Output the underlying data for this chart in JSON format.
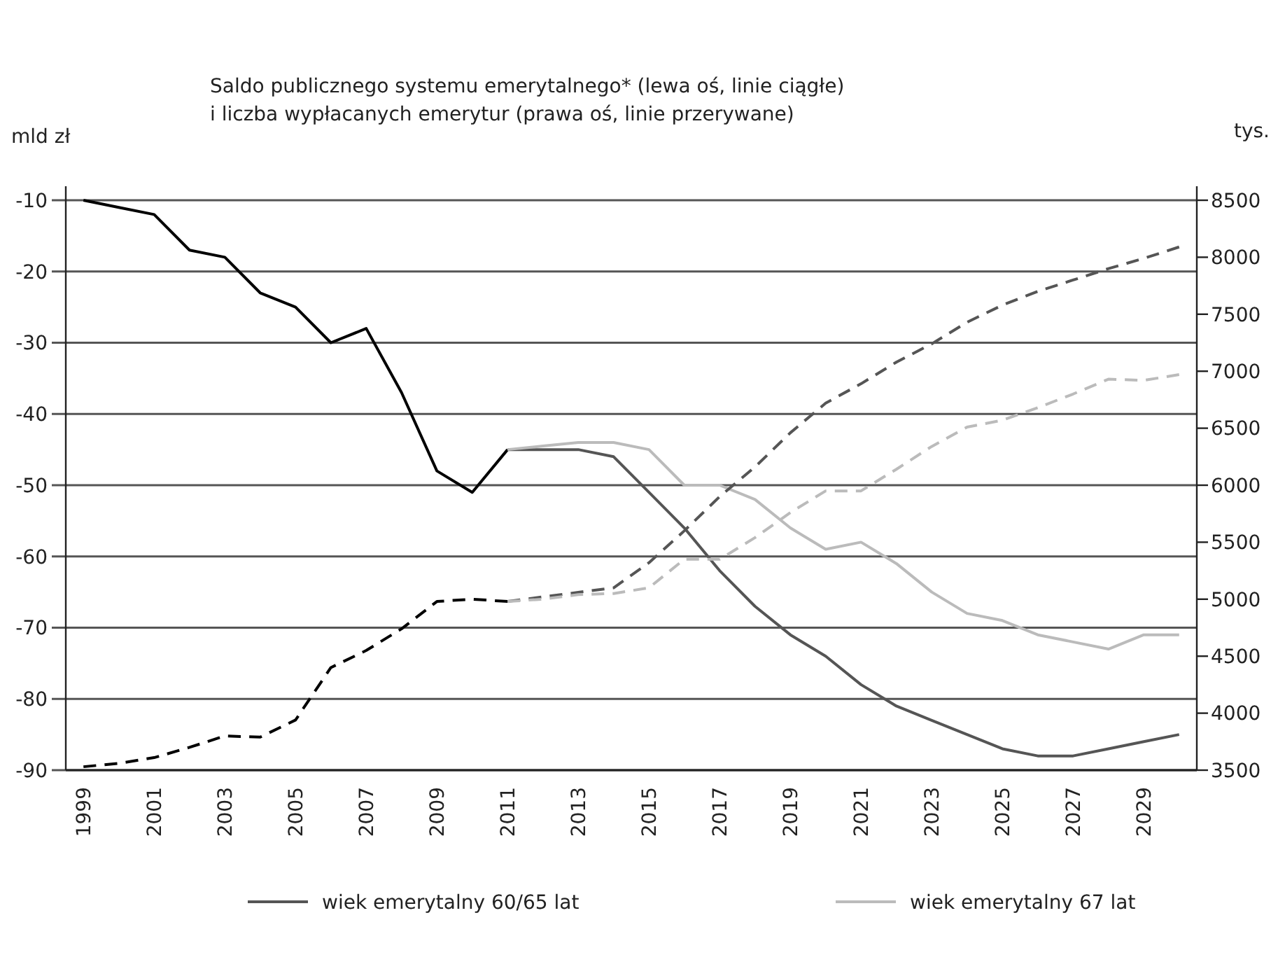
{
  "chart_data": {
    "type": "line",
    "title": "Saldo publicznego systemu emerytalnego* (lewa oś, linie ciągłe)\ni liczba wypłacanych emerytur (prawa oś, linie przerywane)",
    "ylabel": "mld zł",
    "y2label": "tys.",
    "categories": [
      "1999",
      null,
      "2001",
      null,
      "2003",
      null,
      "2005",
      null,
      "2007",
      null,
      "2009",
      null,
      "2011",
      null,
      "2013",
      null,
      "2015",
      null,
      "2017",
      null,
      "2019",
      null,
      "2021",
      null,
      "2023",
      null,
      "2025",
      null,
      "2027",
      null,
      "2029",
      null
    ],
    "ylim": [
      -90,
      -10
    ],
    "yticks": [
      -90,
      -80,
      -70,
      -60,
      -50,
      -40,
      -30,
      -20,
      -10
    ],
    "y2lim": [
      3500,
      8500
    ],
    "y2ticks": [
      3500,
      4000,
      4500,
      5000,
      5500,
      6000,
      6500,
      7000,
      7500,
      8000,
      8500
    ],
    "grid": "y",
    "legend": "bottom",
    "series": [
      {
        "color": "#000000",
        "line_style": "solid",
        "values": [
          -10,
          -11,
          -12,
          -17,
          -18,
          -23,
          -25,
          -30,
          -28,
          -37,
          -48,
          -51,
          -45,
          null,
          null,
          null,
          null,
          null,
          null,
          null,
          null,
          null,
          null,
          null,
          null,
          null,
          null,
          null,
          null,
          null,
          null,
          null
        ]
      },
      {
        "name": "wiek emerytalny 60/65 lat",
        "color": "#555555",
        "line_style": "solid",
        "values": [
          null,
          null,
          null,
          null,
          null,
          null,
          null,
          null,
          null,
          null,
          null,
          null,
          -45,
          -45,
          -45,
          -46,
          -51,
          -56,
          -62,
          -67,
          -71,
          -74,
          -78,
          -81,
          -83,
          -85,
          -87,
          -88,
          -88,
          -87,
          -86,
          -85
        ]
      },
      {
        "name": "wiek emerytalny 67 lat",
        "color": "#bbbbbb",
        "line_style": "solid",
        "values": [
          null,
          null,
          null,
          null,
          null,
          null,
          null,
          null,
          null,
          null,
          null,
          null,
          -45,
          -44.5,
          -44,
          -44,
          -45,
          -50,
          -50,
          -52,
          -56,
          -59,
          -58,
          -61,
          -65,
          -68,
          -69,
          -71,
          -72,
          -73,
          -71,
          -71
        ]
      },
      {
        "color": "#000000",
        "line_style": "dashed",
        "axis": "y2",
        "values": [
          3530,
          3560,
          3610,
          3700,
          3800,
          3790,
          3940,
          4400,
          4550,
          4740,
          4980,
          5000,
          4980,
          null,
          null,
          null,
          null,
          null,
          null,
          null,
          null,
          null,
          null,
          null,
          null,
          null,
          null,
          null,
          null,
          null,
          null,
          null
        ]
      },
      {
        "color": "#555555",
        "line_style": "dashed",
        "axis": "y2",
        "values": [
          null,
          null,
          null,
          null,
          null,
          null,
          null,
          null,
          null,
          null,
          null,
          null,
          4980,
          5020,
          5060,
          5100,
          5320,
          5600,
          5900,
          6160,
          6460,
          6720,
          6890,
          7080,
          7240,
          7430,
          7580,
          7700,
          7800,
          7900,
          7990,
          8090
        ]
      },
      {
        "color": "#bbbbbb",
        "line_style": "dashed",
        "axis": "y2",
        "values": [
          null,
          null,
          null,
          null,
          null,
          null,
          null,
          null,
          null,
          null,
          null,
          null,
          4980,
          5000,
          5040,
          5050,
          5100,
          5350,
          5350,
          5540,
          5760,
          5950,
          5950,
          6140,
          6340,
          6510,
          6570,
          6680,
          6800,
          6930,
          6920,
          6970
        ]
      }
    ]
  }
}
